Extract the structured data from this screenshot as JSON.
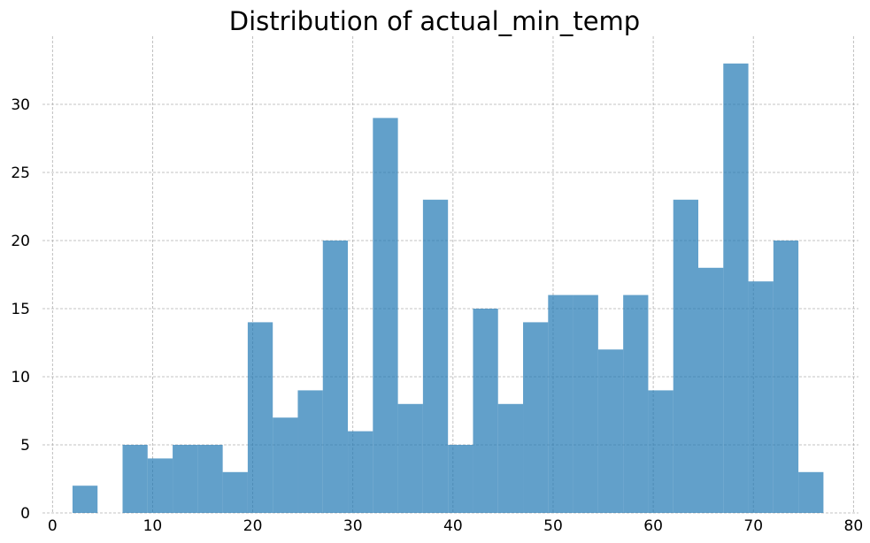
{
  "chart_data": {
    "type": "bar",
    "title": "Distribution of actual_min_temp",
    "xlabel": "",
    "ylabel": "",
    "xlim": [
      -1,
      80.5
    ],
    "ylim": [
      0,
      35
    ],
    "x_ticks": [
      0,
      10,
      20,
      30,
      40,
      50,
      60,
      70,
      80
    ],
    "y_ticks": [
      0,
      5,
      10,
      15,
      20,
      25,
      30
    ],
    "grid": true,
    "bin_edges": [
      2.0,
      4.5,
      7.0,
      9.5,
      12.0,
      14.5,
      17.0,
      19.5,
      22.0,
      24.5,
      27.0,
      29.5,
      32.0,
      34.5,
      37.0,
      39.5,
      42.0,
      44.5,
      47.0,
      49.5,
      52.0,
      54.5,
      57.0,
      59.5,
      62.0,
      64.5,
      67.0,
      69.5,
      72.0,
      74.5,
      77.0
    ],
    "counts": [
      2,
      0,
      5,
      4,
      5,
      5,
      3,
      14,
      7,
      9,
      20,
      6,
      29,
      8,
      23,
      5,
      15,
      8,
      14,
      16,
      16,
      12,
      16,
      9,
      23,
      18,
      33,
      17,
      20,
      3
    ],
    "color": "#1f77b4"
  }
}
